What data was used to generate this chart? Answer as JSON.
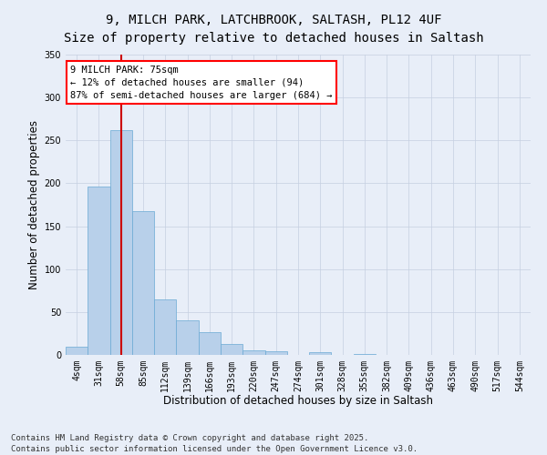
{
  "title_line1": "9, MILCH PARK, LATCHBROOK, SALTASH, PL12 4UF",
  "title_line2": "Size of property relative to detached houses in Saltash",
  "xlabel": "Distribution of detached houses by size in Saltash",
  "ylabel": "Number of detached properties",
  "bar_color": "#b8d0ea",
  "bar_edge_color": "#6aaad4",
  "vline_color": "#cc0000",
  "background_color": "#e8eef8",
  "grid_color": "#c5cfe0",
  "categories": [
    "4sqm",
    "31sqm",
    "58sqm",
    "85sqm",
    "112sqm",
    "139sqm",
    "166sqm",
    "193sqm",
    "220sqm",
    "247sqm",
    "274sqm",
    "301sqm",
    "328sqm",
    "355sqm",
    "382sqm",
    "409sqm",
    "436sqm",
    "463sqm",
    "490sqm",
    "517sqm",
    "544sqm"
  ],
  "values": [
    10,
    196,
    262,
    168,
    65,
    40,
    27,
    13,
    5,
    4,
    0,
    3,
    0,
    1,
    0,
    0,
    0,
    0,
    0,
    0,
    0
  ],
  "ylim": [
    0,
    350
  ],
  "yticks": [
    0,
    50,
    100,
    150,
    200,
    250,
    300,
    350
  ],
  "vline_x": 2.0,
  "annotation_text": "9 MILCH PARK: 75sqm\n← 12% of detached houses are smaller (94)\n87% of semi-detached houses are larger (684) →",
  "footer_line1": "Contains HM Land Registry data © Crown copyright and database right 2025.",
  "footer_line2": "Contains public sector information licensed under the Open Government Licence v3.0.",
  "title_fontsize": 10,
  "axis_label_fontsize": 8.5,
  "tick_fontsize": 7,
  "annotation_fontsize": 7.5,
  "footer_fontsize": 6.5
}
